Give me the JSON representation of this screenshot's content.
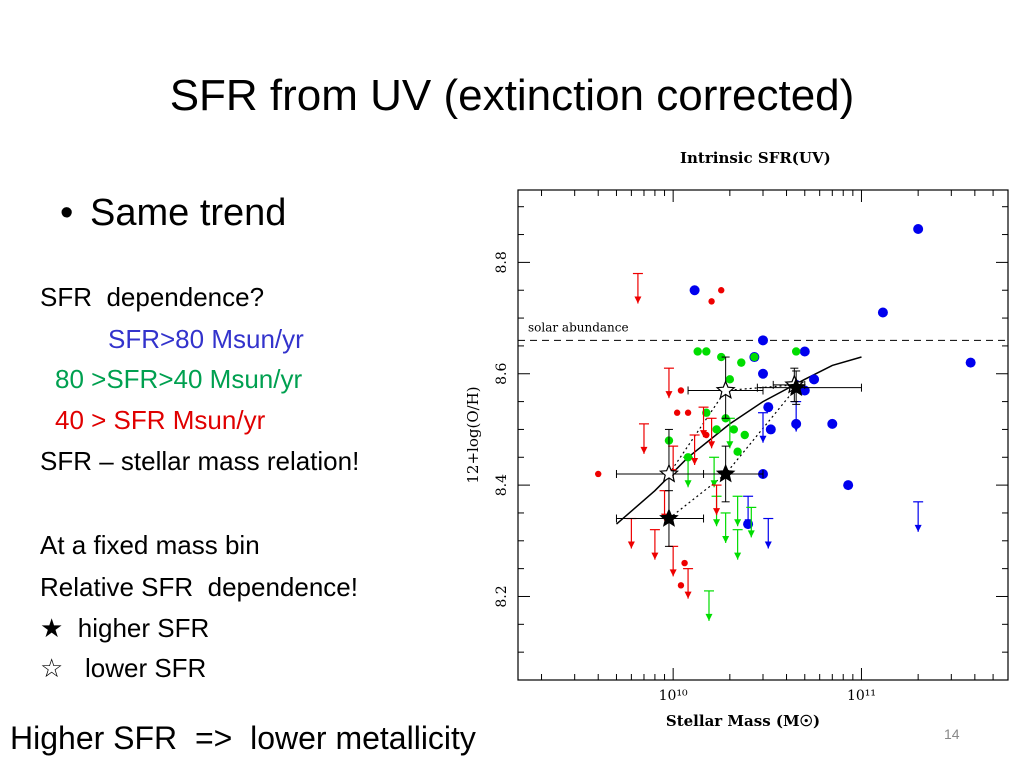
{
  "slide": {
    "title": "SFR from UV (extinction corrected)",
    "bullet": "Same trend",
    "lines": [
      {
        "text": "SFR  dependence?",
        "color": "#000000",
        "indent": 0
      },
      {
        "text": "SFR>80 Msun/yr",
        "color": "#3333cc",
        "indent": 68
      },
      {
        "text": "80 >SFR>40 Msun/yr",
        "color": "#00a050",
        "indent": 15
      },
      {
        "text": "40 > SFR Msun/yr",
        "color": "#e00000",
        "indent": 15
      },
      {
        "text": "SFR – stellar mass relation!",
        "color": "#000000",
        "indent": 0
      },
      {
        "text": "",
        "color": "#000000",
        "indent": 0
      },
      {
        "text": "At a fixed mass bin",
        "color": "#000000",
        "indent": 0
      },
      {
        "text": "Relative SFR  dependence!",
        "color": "#000000",
        "indent": 0
      },
      {
        "text": "★  higher SFR",
        "color": "#000000",
        "indent": 0
      },
      {
        "text": "☆   lower SFR",
        "color": "#000000",
        "indent": 0
      }
    ],
    "footer": "Higher SFR  =>  lower metallicity",
    "page_number": "14"
  },
  "chart_data": {
    "type": "scatter",
    "title": "Intrinsic SFR(UV)",
    "xlabel": "Stellar Mass (M☉)",
    "ylabel": "12+log(O/H)",
    "x_scale": "log",
    "xlim": [
      1500000000.0,
      600000000000.0
    ],
    "ylim": [
      8.05,
      8.93
    ],
    "x_ticks": [
      {
        "value": 10000000000.0,
        "label": "10¹⁰"
      },
      {
        "value": 100000000000.0,
        "label": "10¹¹"
      }
    ],
    "y_ticks": [
      {
        "value": 8.2,
        "label": "8.2"
      },
      {
        "value": 8.4,
        "label": "8.4"
      },
      {
        "value": 8.6,
        "label": "8.6"
      },
      {
        "value": 8.8,
        "label": "8.8"
      }
    ],
    "reference_line": {
      "y": 8.66,
      "label": "solar abundance",
      "style": "dashed"
    },
    "colors": {
      "high": "#0000ee",
      "mid": "#00dd00",
      "low": "#ee0000",
      "axes": "#000000"
    },
    "series": [
      {
        "key": "high",
        "points": [
          [
            13000000000.0,
            8.75
          ],
          [
            200000000000.0,
            8.86
          ],
          [
            130000000000.0,
            8.71
          ],
          [
            380000000000.0,
            8.62
          ],
          [
            30000000000.0,
            8.66
          ],
          [
            27000000000.0,
            8.63
          ],
          [
            50000000000.0,
            8.64
          ],
          [
            56000000000.0,
            8.59
          ],
          [
            30000000000.0,
            8.6
          ],
          [
            45000000000.0,
            8.58
          ],
          [
            50000000000.0,
            8.57
          ],
          [
            32000000000.0,
            8.54
          ],
          [
            33000000000.0,
            8.5
          ],
          [
            45000000000.0,
            8.51
          ],
          [
            70000000000.0,
            8.51
          ],
          [
            30000000000.0,
            8.42
          ],
          [
            85000000000.0,
            8.4
          ],
          [
            25000000000.0,
            8.33
          ]
        ],
        "limits": [
          [
            200000000000.0,
            8.37
          ],
          [
            45000000000.0,
            8.55
          ],
          [
            30000000000.0,
            8.53
          ],
          [
            25000000000.0,
            8.38
          ],
          [
            32000000000.0,
            8.34
          ]
        ]
      },
      {
        "key": "mid",
        "points": [
          [
            13500000000.0,
            8.64
          ],
          [
            15000000000.0,
            8.64
          ],
          [
            18000000000.0,
            8.63
          ],
          [
            23000000000.0,
            8.62
          ],
          [
            27000000000.0,
            8.63
          ],
          [
            45000000000.0,
            8.64
          ],
          [
            20000000000.0,
            8.59
          ],
          [
            15000000000.0,
            8.53
          ],
          [
            19000000000.0,
            8.52
          ],
          [
            21000000000.0,
            8.5
          ],
          [
            24000000000.0,
            8.49
          ],
          [
            17000000000.0,
            8.5
          ],
          [
            9500000000.0,
            8.48
          ],
          [
            22000000000.0,
            8.46
          ],
          [
            12000000000.0,
            8.45
          ]
        ],
        "limits": [
          [
            15500000000.0,
            8.21
          ],
          [
            17000000000.0,
            8.38
          ],
          [
            19000000000.0,
            8.35
          ],
          [
            16500000000.0,
            8.45
          ],
          [
            12000000000.0,
            8.45
          ],
          [
            20000000000.0,
            8.52
          ],
          [
            26000000000.0,
            8.36
          ],
          [
            22000000000.0,
            8.32
          ],
          [
            22000000000.0,
            8.38
          ]
        ]
      },
      {
        "key": "low",
        "points": [
          [
            18000000000.0,
            8.75
          ],
          [
            16000000000.0,
            8.73
          ],
          [
            11000000000.0,
            8.57
          ],
          [
            10500000000.0,
            8.53
          ],
          [
            12000000000.0,
            8.53
          ],
          [
            15000000000.0,
            8.49
          ],
          [
            4000000000.0,
            8.42
          ],
          [
            11500000000.0,
            8.26
          ],
          [
            11000000000.0,
            8.22
          ]
        ],
        "limits": [
          [
            6500000000.0,
            8.78
          ],
          [
            9500000000.0,
            8.61
          ],
          [
            14500000000.0,
            8.54
          ],
          [
            16000000000.0,
            8.52
          ],
          [
            7000000000.0,
            8.51
          ],
          [
            6000000000.0,
            8.34
          ],
          [
            9000000000.0,
            8.39
          ],
          [
            8000000000.0,
            8.32
          ],
          [
            17000000000.0,
            8.4
          ],
          [
            10000000000.0,
            8.29
          ],
          [
            12000000000.0,
            8.25
          ],
          [
            10000000000.0,
            8.47
          ],
          [
            13000000000.0,
            8.49
          ]
        ]
      }
    ],
    "binned": {
      "filled": [
        {
          "x": 9500000000.0,
          "y": 8.34,
          "xerr": [
            5000000000.0,
            14500000000.0
          ],
          "yerr": [
            8.29,
            8.39
          ]
        },
        {
          "x": 19000000000.0,
          "y": 8.42,
          "xerr": [
            10000000000.0,
            30000000000.0
          ],
          "yerr": [
            8.37,
            8.47
          ]
        },
        {
          "x": 45000000000.0,
          "y": 8.575,
          "xerr": [
            28000000000.0,
            100000000000.0
          ],
          "yerr": [
            8.545,
            8.605
          ]
        }
      ],
      "open": [
        {
          "x": 9500000000.0,
          "y": 8.42,
          "xerr": [
            5000000000.0,
            14500000000.0
          ],
          "yerr": [
            8.34,
            8.5
          ]
        },
        {
          "x": 19000000000.0,
          "y": 8.57,
          "xerr": [
            12000000000.0,
            30000000000.0
          ],
          "yerr": [
            8.52,
            8.63
          ]
        },
        {
          "x": 44000000000.0,
          "y": 8.58,
          "xerr": [
            34000000000.0,
            50000000000.0
          ],
          "yerr": [
            8.55,
            8.61
          ]
        }
      ]
    },
    "fit_curve": [
      [
        5000000000.0,
        8.33
      ],
      [
        8000000000.0,
        8.39
      ],
      [
        12000000000.0,
        8.45
      ],
      [
        20000000000.0,
        8.51
      ],
      [
        30000000000.0,
        8.55
      ],
      [
        50000000000.0,
        8.59
      ],
      [
        70000000000.0,
        8.615
      ],
      [
        100000000000.0,
        8.63
      ]
    ],
    "dotted_lines": [
      [
        [
          9500000000.0,
          8.34
        ],
        [
          19000000000.0,
          8.42
        ],
        [
          45000000000.0,
          8.575
        ]
      ],
      [
        [
          9500000000.0,
          8.42
        ],
        [
          19000000000.0,
          8.57
        ],
        [
          44000000000.0,
          8.58
        ]
      ]
    ]
  }
}
